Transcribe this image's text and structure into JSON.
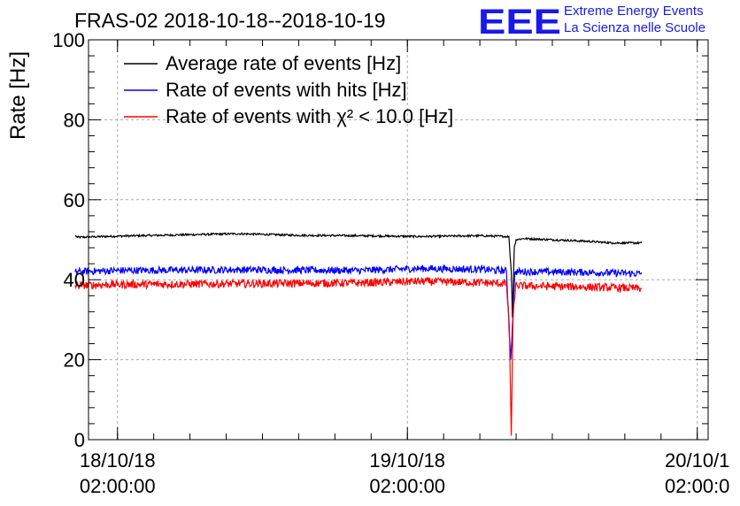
{
  "header": {
    "title": "FRAS-02 2018-10-18--2018-10-19",
    "logo_letters": "EEE",
    "logo_line1": "Extreme Energy Events",
    "logo_line2": "La Scienza nelle Scuole",
    "logo_color": "#1a1ae6"
  },
  "chart_data": {
    "type": "line",
    "title": "FRAS-02 2018-10-18--2018-10-19",
    "xlabel": "",
    "ylabel": "Rate [Hz]",
    "ylim": [
      0,
      100
    ],
    "yticks": [
      0,
      20,
      40,
      60,
      80,
      100
    ],
    "xlim_hours": [
      -2.4,
      48.9
    ],
    "xticks": [
      {
        "pos_hours": 0,
        "line1": "18/10/18",
        "line2": "02:00:00"
      },
      {
        "pos_hours": 24,
        "line1": "19/10/18",
        "line2": "02:00:00"
      },
      {
        "pos_hours": 48,
        "line1": "20/10/1",
        "line2": "02:00:0"
      }
    ],
    "grid": true,
    "legend_position": "top-left",
    "x_range_hours": [
      -3.5,
      43.4
    ],
    "series": [
      {
        "name": "Average rate of events [Hz]",
        "color": "#000000",
        "noise": 0.25,
        "points": [
          [
            -3.5,
            51.0
          ],
          [
            -3.3,
            50.6
          ],
          [
            0,
            50.9
          ],
          [
            5,
            51.2
          ],
          [
            10,
            51.5
          ],
          [
            15,
            51.1
          ],
          [
            20,
            51.0
          ],
          [
            25,
            50.8
          ],
          [
            30,
            51.0
          ],
          [
            32.4,
            50.8
          ],
          [
            32.6,
            42
          ],
          [
            32.7,
            30.5
          ],
          [
            32.85,
            48
          ],
          [
            33,
            50.0
          ],
          [
            33.6,
            50.3
          ],
          [
            36,
            50.0
          ],
          [
            39,
            49.6
          ],
          [
            41,
            49.2
          ],
          [
            43.4,
            49.2
          ]
        ]
      },
      {
        "name": "Rate of events with hits [Hz]",
        "color": "#0000ff",
        "noise": 0.9,
        "points": [
          [
            -3.5,
            42.0
          ],
          [
            0,
            42.3
          ],
          [
            10,
            42.5
          ],
          [
            20,
            42.3
          ],
          [
            25,
            42.8
          ],
          [
            30,
            42.6
          ],
          [
            32.2,
            42.2
          ],
          [
            32.55,
            20
          ],
          [
            32.7,
            28.5
          ],
          [
            32.9,
            42
          ],
          [
            35,
            42.0
          ],
          [
            40,
            41.8
          ],
          [
            43.4,
            41.5
          ]
        ]
      },
      {
        "name": "Rate of events with χ² < 10.0 [Hz]",
        "color": "#ff0000",
        "noise": 1.0,
        "points": [
          [
            -3.5,
            38.6
          ],
          [
            0,
            38.8
          ],
          [
            10,
            39.0
          ],
          [
            20,
            39.2
          ],
          [
            25,
            39.6
          ],
          [
            30,
            39.3
          ],
          [
            32.2,
            39.0
          ],
          [
            32.45,
            28
          ],
          [
            32.6,
            1.0
          ],
          [
            32.75,
            30
          ],
          [
            32.95,
            38.5
          ],
          [
            35,
            38.4
          ],
          [
            40,
            38.1
          ],
          [
            43.4,
            37.8
          ]
        ]
      }
    ]
  }
}
